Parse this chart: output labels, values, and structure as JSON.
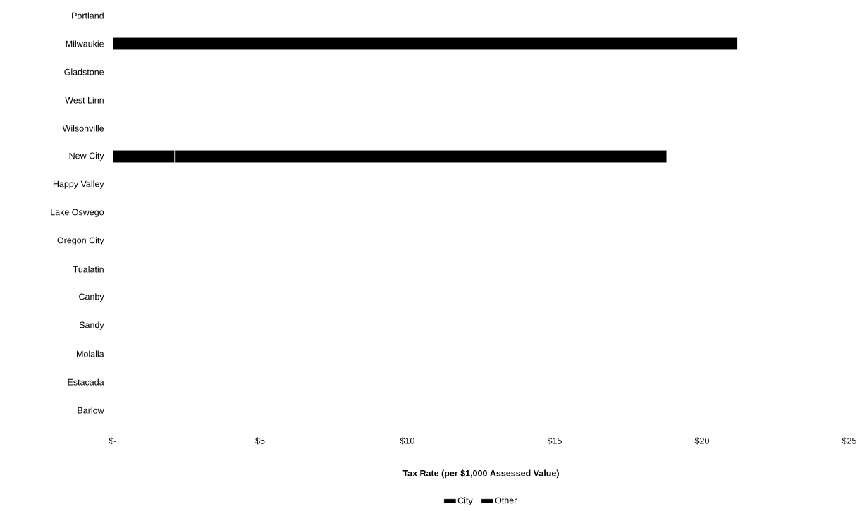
{
  "chart_data": {
    "type": "bar",
    "orientation": "horizontal",
    "stacked": true,
    "categories": [
      "Portland",
      "Milwaukie",
      "Gladstone",
      "West Linn",
      "Wilsonville",
      "New City",
      "Happy Valley",
      "Lake Oswego",
      "Oregon City",
      "Tualatin",
      "Canby",
      "Sandy",
      "Molalla",
      "Estacada",
      "Barlow"
    ],
    "series": [
      {
        "name": "City",
        "color": "#000000",
        "values": [
          null,
          21.2,
          null,
          null,
          null,
          2.1,
          null,
          null,
          null,
          null,
          null,
          null,
          null,
          null,
          null
        ]
      },
      {
        "name": "Other",
        "color": "#000000",
        "values": [
          null,
          null,
          null,
          null,
          null,
          16.7,
          null,
          null,
          null,
          null,
          null,
          null,
          null,
          null,
          null
        ]
      }
    ],
    "xlabel": "Tax Rate (per $1,000 Assessed Value)",
    "xlim": [
      0,
      25
    ],
    "xticks": [
      {
        "value": 0,
        "label": "$-"
      },
      {
        "value": 5,
        "label": "$5"
      },
      {
        "value": 10,
        "label": "$10"
      },
      {
        "value": 15,
        "label": "$15"
      },
      {
        "value": 20,
        "label": "$20"
      },
      {
        "value": 25,
        "label": "$25"
      }
    ],
    "legend": "bottom",
    "grid": false
  }
}
